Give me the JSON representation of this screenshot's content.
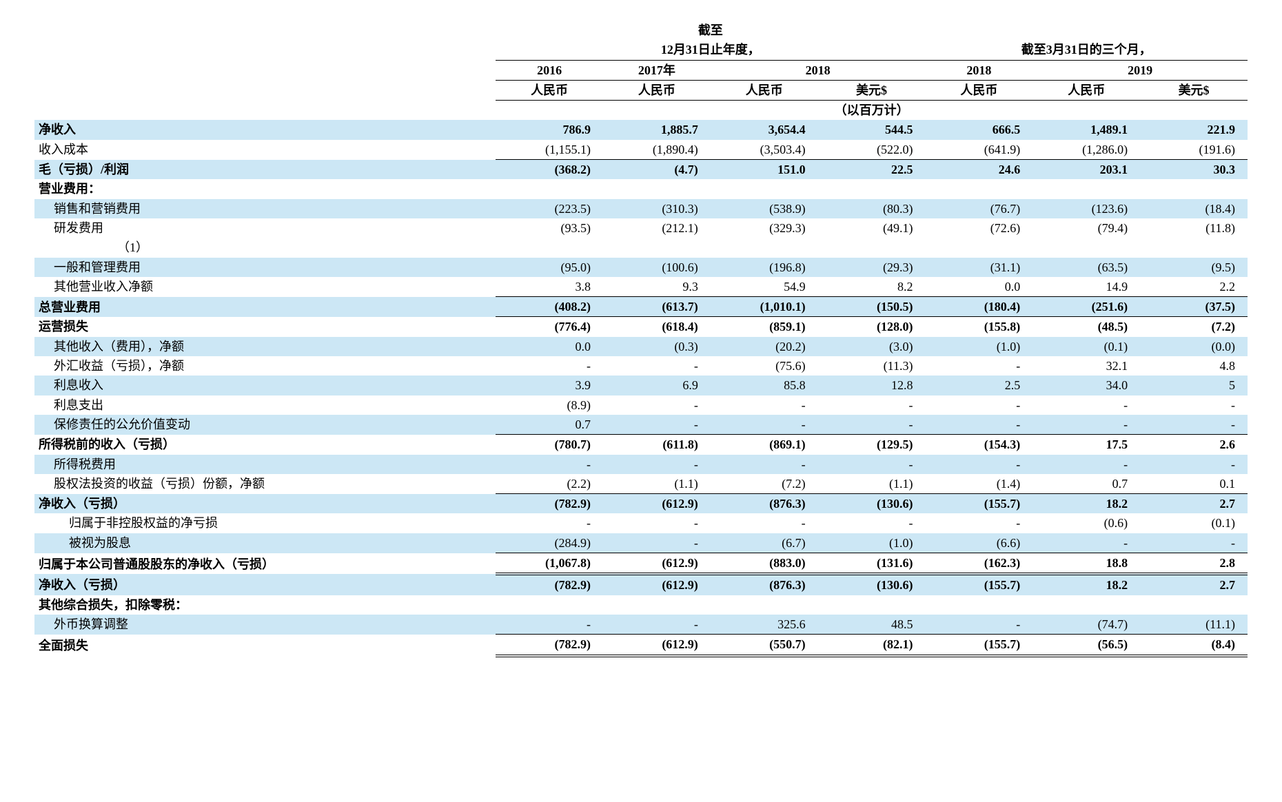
{
  "header": {
    "year_end_line1": "截至",
    "year_end_line2": "12月31日止年度，",
    "quarter_line": "截至3月31日的三个月，",
    "y2016": "2016",
    "y2017": "2017年",
    "y2018": "2018",
    "q2018": "2018",
    "q2019": "2019",
    "rmb": "人民币",
    "usd": "美元$",
    "unit": "（以百万计）"
  },
  "footnote": "（1）",
  "rows": [
    {
      "label": "净收入",
      "indent": 0,
      "bold": true,
      "stripe": true,
      "v": [
        "786.9",
        "1,885.7",
        "3,654.4",
        "544.5",
        "666.5",
        "1,489.1",
        "221.9"
      ]
    },
    {
      "label": "收入成本",
      "indent": 0,
      "bold": false,
      "stripe": false,
      "border": "b",
      "v": [
        "(1,155.1)",
        "(1,890.4)",
        "(3,503.4)",
        "(522.0)",
        "(641.9)",
        "(1,286.0)",
        "(191.6)"
      ]
    },
    {
      "label": "毛（亏损）/利润",
      "indent": 0,
      "bold": true,
      "stripe": true,
      "v": [
        "(368.2)",
        "(4.7)",
        "151.0",
        "22.5",
        "24.6",
        "203.1",
        "30.3"
      ]
    },
    {
      "label": "营业费用：",
      "indent": 0,
      "bold": true,
      "stripe": false,
      "v": [
        "",
        "",
        "",
        "",
        "",
        "",
        ""
      ]
    },
    {
      "label": "销售和营销费用",
      "indent": 1,
      "bold": false,
      "stripe": true,
      "v": [
        "(223.5)",
        "(310.3)",
        "(538.9)",
        "(80.3)",
        "(76.7)",
        "(123.6)",
        "(18.4)"
      ]
    },
    {
      "label": "研发费用",
      "indent": 1,
      "bold": false,
      "stripe": false,
      "v": [
        "(93.5)",
        "(212.1)",
        "(329.3)",
        "(49.1)",
        "(72.6)",
        "(79.4)",
        "(11.8)"
      ]
    },
    {
      "label": "一般和管理费用",
      "indent": 1,
      "bold": false,
      "stripe": true,
      "note": true,
      "v": [
        "(95.0)",
        "(100.6)",
        "(196.8)",
        "(29.3)",
        "(31.1)",
        "(63.5)",
        "(9.5)"
      ]
    },
    {
      "label": "其他营业收入净额",
      "indent": 1,
      "bold": false,
      "stripe": false,
      "border": "b",
      "v": [
        "3.8",
        "9.3",
        "54.9",
        "8.2",
        "0.0",
        "14.9",
        "2.2"
      ]
    },
    {
      "label": "总营业费用",
      "indent": 0,
      "bold": true,
      "stripe": true,
      "border": "b",
      "v": [
        "(408.2)",
        "(613.7)",
        "(1,010.1)",
        "(150.5)",
        "(180.4)",
        "(251.6)",
        "(37.5)"
      ]
    },
    {
      "label": "运营损失",
      "indent": 0,
      "bold": true,
      "stripe": false,
      "v": [
        "(776.4)",
        "(618.4)",
        "(859.1)",
        "(128.0)",
        "(155.8)",
        "(48.5)",
        "(7.2)"
      ]
    },
    {
      "label": "其他收入（费用），净额",
      "indent": 1,
      "bold": false,
      "stripe": true,
      "v": [
        "0.0",
        "(0.3)",
        "(20.2)",
        "(3.0)",
        "(1.0)",
        "(0.1)",
        "(0.0)"
      ]
    },
    {
      "label": "外汇收益（亏损），净额",
      "indent": 1,
      "bold": false,
      "stripe": false,
      "v": [
        "-",
        "-",
        "(75.6)",
        "(11.3)",
        "-",
        "32.1",
        "4.8"
      ]
    },
    {
      "label": "利息收入",
      "indent": 1,
      "bold": false,
      "stripe": true,
      "v": [
        "3.9",
        "6.9",
        "85.8",
        "12.8",
        "2.5",
        "34.0",
        "5"
      ]
    },
    {
      "label": "利息支出",
      "indent": 1,
      "bold": false,
      "stripe": false,
      "v": [
        "(8.9)",
        "-",
        "-",
        "-",
        "-",
        "-",
        "-"
      ]
    },
    {
      "label": "保修责任的公允价值变动",
      "indent": 1,
      "bold": false,
      "stripe": true,
      "border": "b",
      "v": [
        "0.7",
        "-",
        "-",
        "-",
        "-",
        "-",
        "-"
      ]
    },
    {
      "label": "所得税前的收入（亏损）",
      "indent": 0,
      "bold": true,
      "stripe": false,
      "v": [
        "(780.7)",
        "(611.8)",
        "(869.1)",
        "(129.5)",
        "(154.3)",
        "17.5",
        "2.6"
      ]
    },
    {
      "label": "所得税费用",
      "indent": 1,
      "bold": false,
      "stripe": true,
      "v": [
        "-",
        "-",
        "-",
        "-",
        "-",
        "-",
        "-"
      ]
    },
    {
      "label": "股权法投资的收益（亏损）份额，净额",
      "indent": 1,
      "bold": false,
      "stripe": false,
      "border": "b",
      "v": [
        "(2.2)",
        "(1.1)",
        "(7.2)",
        "(1.1)",
        "(1.4)",
        "0.7",
        "0.1"
      ]
    },
    {
      "label": "净收入（亏损）",
      "indent": 0,
      "bold": true,
      "stripe": true,
      "v": [
        "(782.9)",
        "(612.9)",
        "(876.3)",
        "(130.6)",
        "(155.7)",
        "18.2",
        "2.7"
      ]
    },
    {
      "label": "归属于非控股权益的净亏损",
      "indent": 2,
      "bold": false,
      "stripe": false,
      "v": [
        "-",
        "-",
        "-",
        "-",
        "-",
        "(0.6)",
        "(0.1)"
      ]
    },
    {
      "label": "被视为股息",
      "indent": 2,
      "bold": false,
      "stripe": true,
      "border": "b",
      "v": [
        "(284.9)",
        "-",
        "(6.7)",
        "(1.0)",
        "(6.6)",
        "-",
        "-"
      ]
    },
    {
      "label": "归属于本公司普通股股东的净收入（亏损）",
      "indent": 0,
      "bold": true,
      "stripe": false,
      "border": "bb",
      "v": [
        "(1,067.8)",
        "(612.9)",
        "(883.0)",
        "(131.6)",
        "(162.3)",
        "18.8",
        "2.8"
      ]
    },
    {
      "label": "净收入（亏损）",
      "indent": 0,
      "bold": true,
      "stripe": true,
      "v": [
        "(782.9)",
        "(612.9)",
        "(876.3)",
        "(130.6)",
        "(155.7)",
        "18.2",
        "2.7"
      ]
    },
    {
      "label": "其他综合损失，扣除零税：",
      "indent": 0,
      "bold": true,
      "stripe": false,
      "v": [
        "",
        "",
        "",
        "",
        "",
        "",
        ""
      ]
    },
    {
      "label": "外币换算调整",
      "indent": 1,
      "bold": false,
      "stripe": true,
      "border": "b",
      "v": [
        "-",
        "-",
        "325.6",
        "48.5",
        "-",
        "(74.7)",
        "(11.1)"
      ]
    },
    {
      "label": "全面损失",
      "indent": 0,
      "bold": true,
      "stripe": false,
      "border": "bb",
      "v": [
        "(782.9)",
        "(612.9)",
        "(550.7)",
        "(82.1)",
        "(155.7)",
        "(56.5)",
        "(8.4)"
      ]
    }
  ]
}
